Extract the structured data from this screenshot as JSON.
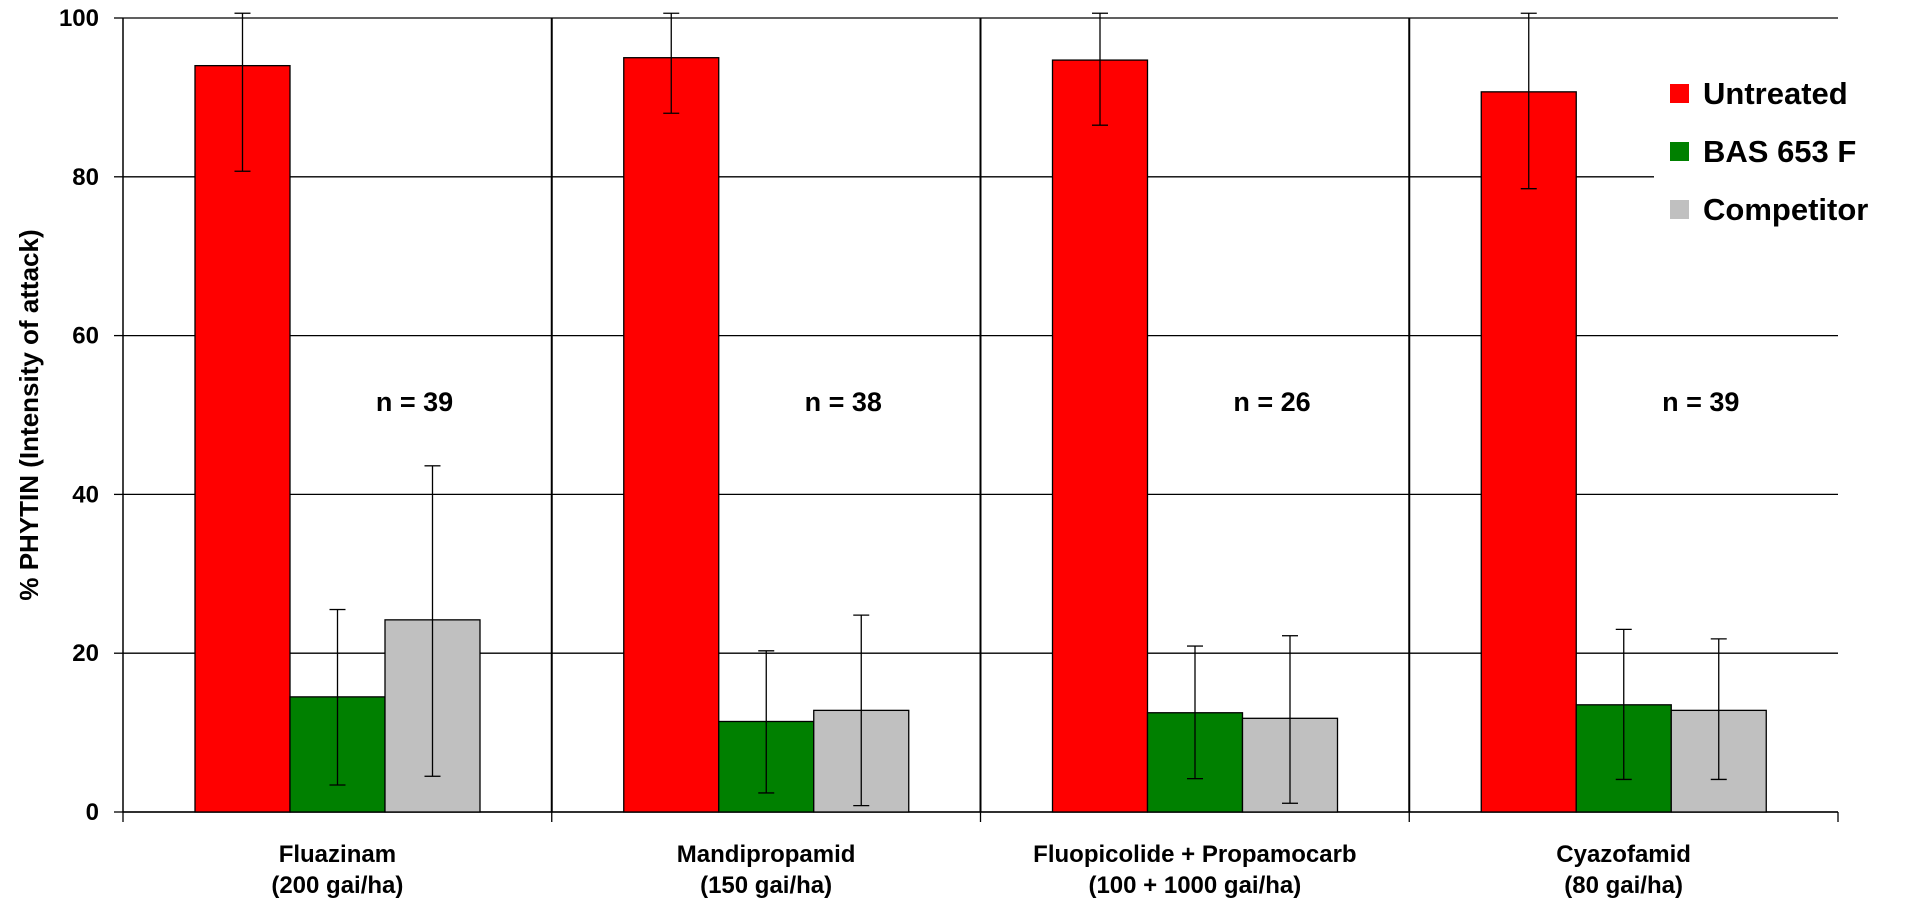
{
  "chart_data": {
    "type": "bar",
    "title": "",
    "xlabel": "",
    "ylabel": "% PHYTIN (Intensity of attack)",
    "ylim": [
      0,
      100
    ],
    "yticks": [
      0,
      20,
      40,
      60,
      80,
      100
    ],
    "grid": true,
    "legend_position": "top-right",
    "categories": [
      {
        "line1": "Fluazinam",
        "line2": "(200 gai/ha)",
        "n_label": "n = 39"
      },
      {
        "line1": "Mandipropamid",
        "line2": "(150 gai/ha)",
        "n_label": "n = 38"
      },
      {
        "line1": "Fluopicolide + Propamocarb",
        "line2": "(100 + 1000 gai/ha)",
        "n_label": "n = 26"
      },
      {
        "line1": "Cyazofamid",
        "line2": "(80 gai/ha)",
        "n_label": "n = 39"
      }
    ],
    "series": [
      {
        "name": "Untreated",
        "color": "#ff0000",
        "values": [
          94,
          95,
          94.7,
          90.7
        ],
        "errors": [
          [
            80.7,
            100.6
          ],
          [
            88,
            100.6
          ],
          [
            86.5,
            100.6
          ],
          [
            78.5,
            100.6
          ]
        ]
      },
      {
        "name": "BAS 653 F",
        "color": "#008000",
        "values": [
          14.5,
          11.4,
          12.5,
          13.5
        ],
        "errors": [
          [
            3.4,
            25.5
          ],
          [
            2.4,
            20.3
          ],
          [
            4.2,
            20.9
          ],
          [
            4.1,
            23
          ]
        ]
      },
      {
        "name": "Competitor",
        "color": "#c0c0c0",
        "values": [
          24.2,
          12.8,
          11.8,
          12.8
        ],
        "errors": [
          [
            4.5,
            43.6
          ],
          [
            0.8,
            24.8
          ],
          [
            1.1,
            22.2
          ],
          [
            4.1,
            21.8
          ]
        ]
      }
    ]
  }
}
